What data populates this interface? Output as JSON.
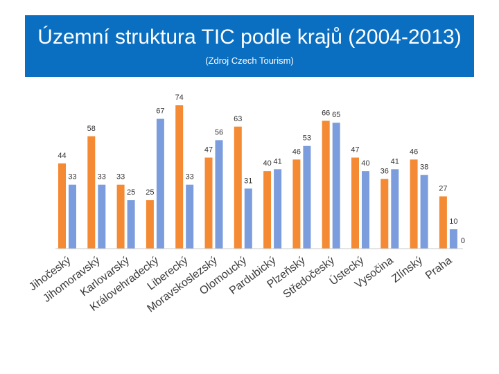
{
  "header": {
    "title": "Územní struktura TIC podle krajů (2004-2013)",
    "subtitle": "(Zdroj Czech Tourism)"
  },
  "colors": {
    "header_bg": "#0b6fc1",
    "series_2004": "#f58a34",
    "series_2013": "#7c9ddd",
    "axis": "#c8c8c8"
  },
  "chart_data": {
    "type": "bar",
    "categories": [
      "Jihočeský",
      "Jihomoravský",
      "Karlovarský",
      "Královehradecký",
      "Liberecký",
      "Moravskoslezský",
      "Olomoucký",
      "Pardubický",
      "Plzeňský",
      "Středočeský",
      "Ústecký",
      "Vysočina",
      "Zlínský",
      "Praha"
    ],
    "series": [
      {
        "values": [
          44,
          58,
          33,
          25,
          74,
          47,
          63,
          40,
          46,
          66,
          47,
          36,
          46,
          27
        ]
      },
      {
        "values": [
          33,
          33,
          25,
          67,
          33,
          56,
          31,
          41,
          53,
          65,
          40,
          41,
          38,
          10
        ]
      }
    ],
    "extra_labels": [
      {
        "category": "Praha",
        "text": "0"
      }
    ],
    "ylim": [
      0,
      80
    ],
    "grid": false,
    "legend": "none",
    "xlabel": "",
    "ylabel": ""
  }
}
